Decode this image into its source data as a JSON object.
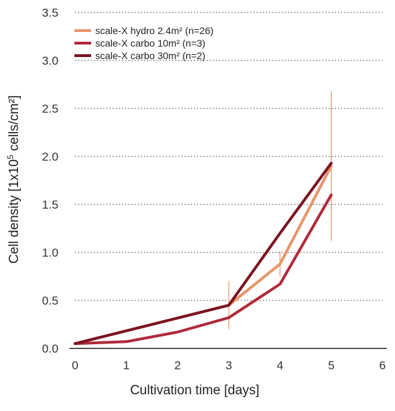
{
  "chart_data": {
    "type": "line",
    "xlabel": "Cultivation time [days]",
    "ylabel_parts": [
      "Cell density [1x10",
      "5",
      " cells/cm²]"
    ],
    "xlim": [
      0,
      6
    ],
    "ylim": [
      0,
      3.5
    ],
    "x_ticks": [
      "0",
      "1",
      "2",
      "3",
      "4",
      "5",
      "6"
    ],
    "y_ticks": [
      "0.0",
      "0.5",
      "1.0",
      "1.5",
      "2.0",
      "2.5",
      "3.0",
      "3.5"
    ],
    "grid": "horizontal dotted",
    "legend_position": "top-left",
    "series": [
      {
        "name": "scale-X hydro 2.4m² (n=26)",
        "color": "#e8956a",
        "x": [
          0,
          3,
          4,
          5
        ],
        "y": [
          0.05,
          0.45,
          0.88,
          1.9
        ],
        "error": [
          0,
          0.25,
          0.13,
          0.78
        ]
      },
      {
        "name": "scale-X carbo 10m² (n=3)",
        "color": "#b02a3a",
        "x": [
          0,
          1,
          2,
          3,
          4,
          5
        ],
        "y": [
          0.05,
          0.07,
          0.17,
          0.32,
          0.67,
          1.6
        ],
        "error": [
          0,
          0,
          0,
          0,
          0,
          0
        ]
      },
      {
        "name": "scale-X carbo 30m² (n=2)",
        "color": "#7a1420",
        "x": [
          0,
          3,
          4,
          5
        ],
        "y": [
          0.05,
          0.45,
          1.2,
          1.93
        ],
        "error": [
          0,
          0,
          0,
          0
        ]
      }
    ]
  }
}
